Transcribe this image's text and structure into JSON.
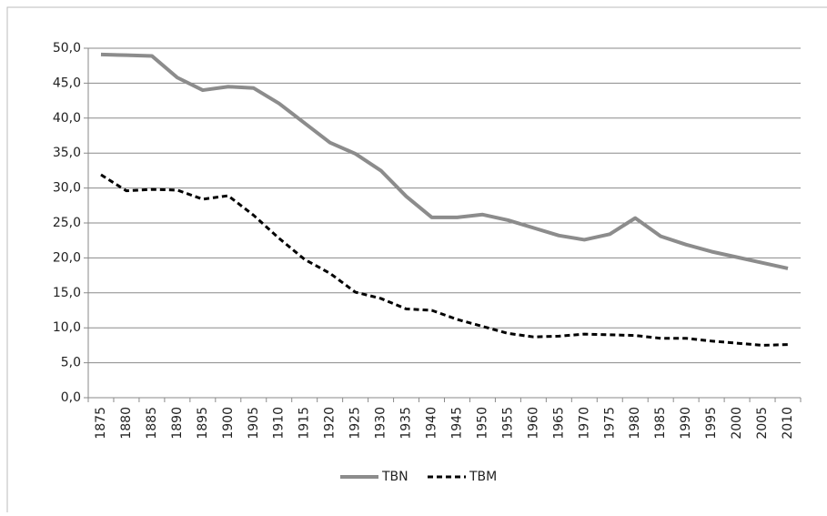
{
  "chart_data": {
    "type": "line",
    "categories": [
      "1875",
      "1880",
      "1885",
      "1890",
      "1895",
      "1900",
      "1905",
      "1910",
      "1915",
      "1920",
      "1925",
      "1930",
      "1935",
      "1940",
      "1945",
      "1950",
      "1955",
      "1960",
      "1965",
      "1970",
      "1975",
      "1980",
      "1985",
      "1990",
      "1995",
      "2000",
      "2005",
      "2010"
    ],
    "series": [
      {
        "name": "TBN",
        "color": "#8c8c8c",
        "dash": "solid",
        "values": [
          49.1,
          49.0,
          48.9,
          45.8,
          44.0,
          44.5,
          44.3,
          42.1,
          39.3,
          36.5,
          34.9,
          32.5,
          28.8,
          25.8,
          25.8,
          26.2,
          25.4,
          24.3,
          23.2,
          22.6,
          23.4,
          25.7,
          23.1,
          21.9,
          20.9,
          20.1,
          19.3,
          18.5
        ]
      },
      {
        "name": "TBM",
        "color": "#000000",
        "dash": "dashed",
        "values": [
          31.9,
          29.6,
          29.8,
          29.7,
          28.4,
          28.9,
          26.1,
          22.8,
          19.8,
          17.8,
          15.1,
          14.2,
          12.7,
          12.5,
          11.2,
          10.2,
          9.2,
          8.7,
          8.8,
          9.1,
          9.0,
          8.9,
          8.5,
          8.5,
          8.1,
          7.8,
          7.5,
          7.6
        ]
      }
    ],
    "ylim": [
      0,
      50
    ],
    "yticks": [
      {
        "value": 0,
        "label": "0,0"
      },
      {
        "value": 5,
        "label": "5,0"
      },
      {
        "value": 10,
        "label": "10,0"
      },
      {
        "value": 15,
        "label": "15,0"
      },
      {
        "value": 20,
        "label": "20,0"
      },
      {
        "value": 25,
        "label": "25,0"
      },
      {
        "value": 30,
        "label": "30,0"
      },
      {
        "value": 35,
        "label": "35,0"
      },
      {
        "value": 40,
        "label": "40,0"
      },
      {
        "value": 45,
        "label": "45,0"
      },
      {
        "value": 50,
        "label": "50,0"
      }
    ],
    "grid": true,
    "legend": "bottom"
  }
}
